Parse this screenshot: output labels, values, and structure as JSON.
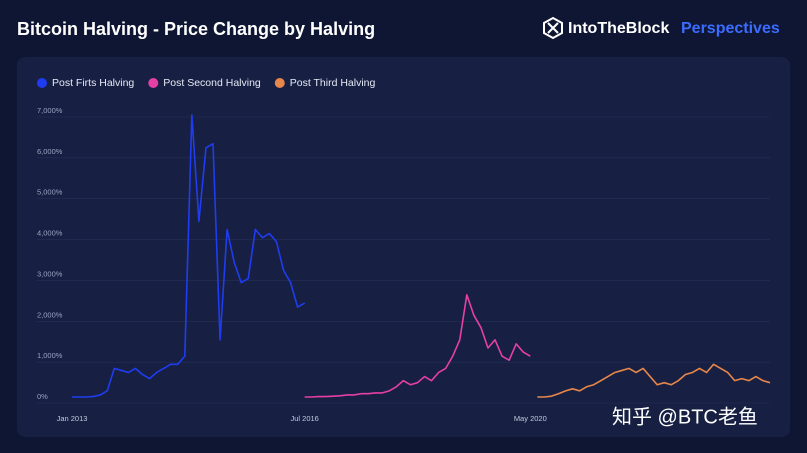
{
  "chart_data": {
    "type": "line",
    "title": "Bitcoin Halving - Price Change by Halving",
    "brand": "IntoTheBlock",
    "brand_suffix": "Perspectives",
    "watermark": "知乎 @BTC老鱼",
    "categories": [
      "Jan 2013",
      null,
      null,
      null,
      null,
      null,
      null,
      null,
      null,
      null,
      null,
      null,
      null,
      null,
      null,
      null,
      null,
      null,
      null,
      null,
      null,
      null,
      null,
      null,
      null,
      null,
      null,
      null,
      null,
      null,
      null,
      null,
      null,
      "Jul 2016",
      null,
      null,
      null,
      null,
      null,
      null,
      null,
      null,
      null,
      null,
      null,
      null,
      null,
      null,
      null,
      null,
      null,
      null,
      null,
      null,
      null,
      null,
      null,
      null,
      null,
      null,
      null,
      null,
      null,
      null,
      null,
      "May 2020",
      null,
      null,
      null,
      null,
      null,
      null,
      null,
      null,
      null,
      null,
      null,
      null,
      null,
      null,
      null,
      null,
      null,
      null,
      null,
      null,
      null,
      null,
      null,
      null,
      null,
      null,
      null,
      null,
      null,
      null,
      null,
      null,
      null,
      null
    ],
    "series": [
      {
        "name": "Post Firts Halving",
        "color": "#1f3cf0",
        "values": [
          0,
          0,
          0,
          10,
          50,
          150,
          700,
          650,
          600,
          700,
          550,
          450,
          600,
          700,
          800,
          800,
          1000,
          6900,
          4300,
          6100,
          6200,
          1400,
          4100,
          3300,
          2800,
          2900,
          4100,
          3900,
          4000,
          3800,
          3100,
          2800,
          2200,
          2300,
          null,
          null,
          null,
          null,
          null,
          null,
          null,
          null,
          null,
          null,
          null,
          null,
          null,
          null,
          null,
          null,
          null,
          null,
          null,
          null,
          null,
          null,
          null,
          null,
          null,
          null,
          null,
          null,
          null,
          null,
          null,
          null,
          null,
          null,
          null,
          null,
          null,
          null,
          null,
          null,
          null,
          null,
          null,
          null,
          null,
          null,
          null,
          null,
          null,
          null,
          null,
          null,
          null,
          null,
          null,
          null,
          null,
          null,
          null,
          null,
          null,
          null,
          null,
          null,
          null,
          null
        ]
      },
      {
        "name": "Post Second Halving",
        "color": "#e63fa6",
        "values": [
          null,
          null,
          null,
          null,
          null,
          null,
          null,
          null,
          null,
          null,
          null,
          null,
          null,
          null,
          null,
          null,
          null,
          null,
          null,
          null,
          null,
          null,
          null,
          null,
          null,
          null,
          null,
          null,
          null,
          null,
          null,
          null,
          null,
          0,
          0,
          10,
          10,
          20,
          30,
          50,
          50,
          80,
          80,
          100,
          100,
          150,
          250,
          400,
          300,
          350,
          500,
          400,
          600,
          700,
          1000,
          1400,
          2500,
          2000,
          1700,
          1200,
          1400,
          1000,
          900,
          1300,
          1100,
          1000,
          null,
          null,
          null,
          null,
          null,
          null,
          null,
          null,
          null,
          null,
          null,
          null,
          null,
          null,
          null,
          null,
          null,
          null,
          null,
          null,
          null,
          null,
          null,
          null,
          null,
          null,
          null,
          null,
          null,
          null,
          null,
          null,
          null,
          null
        ]
      },
      {
        "name": "Post Third Halving",
        "color": "#e8874a",
        "values": [
          null,
          null,
          null,
          null,
          null,
          null,
          null,
          null,
          null,
          null,
          null,
          null,
          null,
          null,
          null,
          null,
          null,
          null,
          null,
          null,
          null,
          null,
          null,
          null,
          null,
          null,
          null,
          null,
          null,
          null,
          null,
          null,
          null,
          null,
          null,
          null,
          null,
          null,
          null,
          null,
          null,
          null,
          null,
          null,
          null,
          null,
          null,
          null,
          null,
          null,
          null,
          null,
          null,
          null,
          null,
          null,
          null,
          null,
          null,
          null,
          null,
          null,
          null,
          null,
          null,
          null,
          0,
          0,
          20,
          80,
          150,
          200,
          150,
          250,
          300,
          400,
          500,
          600,
          650,
          700,
          600,
          700,
          500,
          300,
          350,
          300,
          400,
          550,
          600,
          700,
          600,
          800,
          700,
          600,
          400,
          450,
          400,
          500,
          400,
          350
        ]
      }
    ],
    "ylim": [
      0,
      7000
    ],
    "yticks": [
      {
        "value": 0,
        "label": "0%"
      },
      {
        "value": 1000,
        "label": "1,000%"
      },
      {
        "value": 2000,
        "label": "2,000%"
      },
      {
        "value": 3000,
        "label": "3,000%"
      },
      {
        "value": 4000,
        "label": "4,000%"
      },
      {
        "value": 5000,
        "label": "5,000%"
      },
      {
        "value": 6000,
        "label": "6,000%"
      },
      {
        "value": 7000,
        "label": "7,000%"
      }
    ],
    "grid": true
  }
}
